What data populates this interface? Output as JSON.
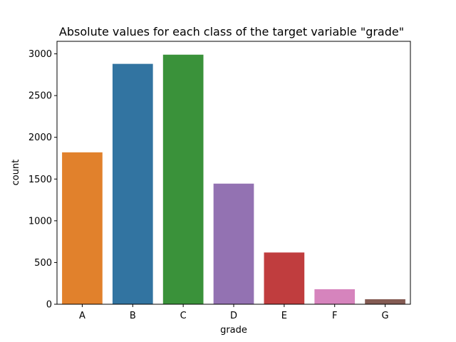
{
  "chart_data": {
    "type": "bar",
    "title": "Absolute values for each class of the target variable \"grade\"",
    "xlabel": "grade",
    "ylabel": "count",
    "categories": [
      "A",
      "B",
      "C",
      "D",
      "E",
      "F",
      "G"
    ],
    "values": [
      1820,
      2880,
      2990,
      1445,
      620,
      180,
      60
    ],
    "colors": [
      "#e1812c",
      "#3274a1",
      "#3a923a",
      "#9372b2",
      "#c03d3e",
      "#d684bd",
      "#845b53"
    ],
    "ylim": [
      0,
      3150
    ],
    "yticks": [
      0,
      500,
      1000,
      1500,
      2000,
      2500,
      3000
    ],
    "grid": false,
    "legend": "none"
  }
}
